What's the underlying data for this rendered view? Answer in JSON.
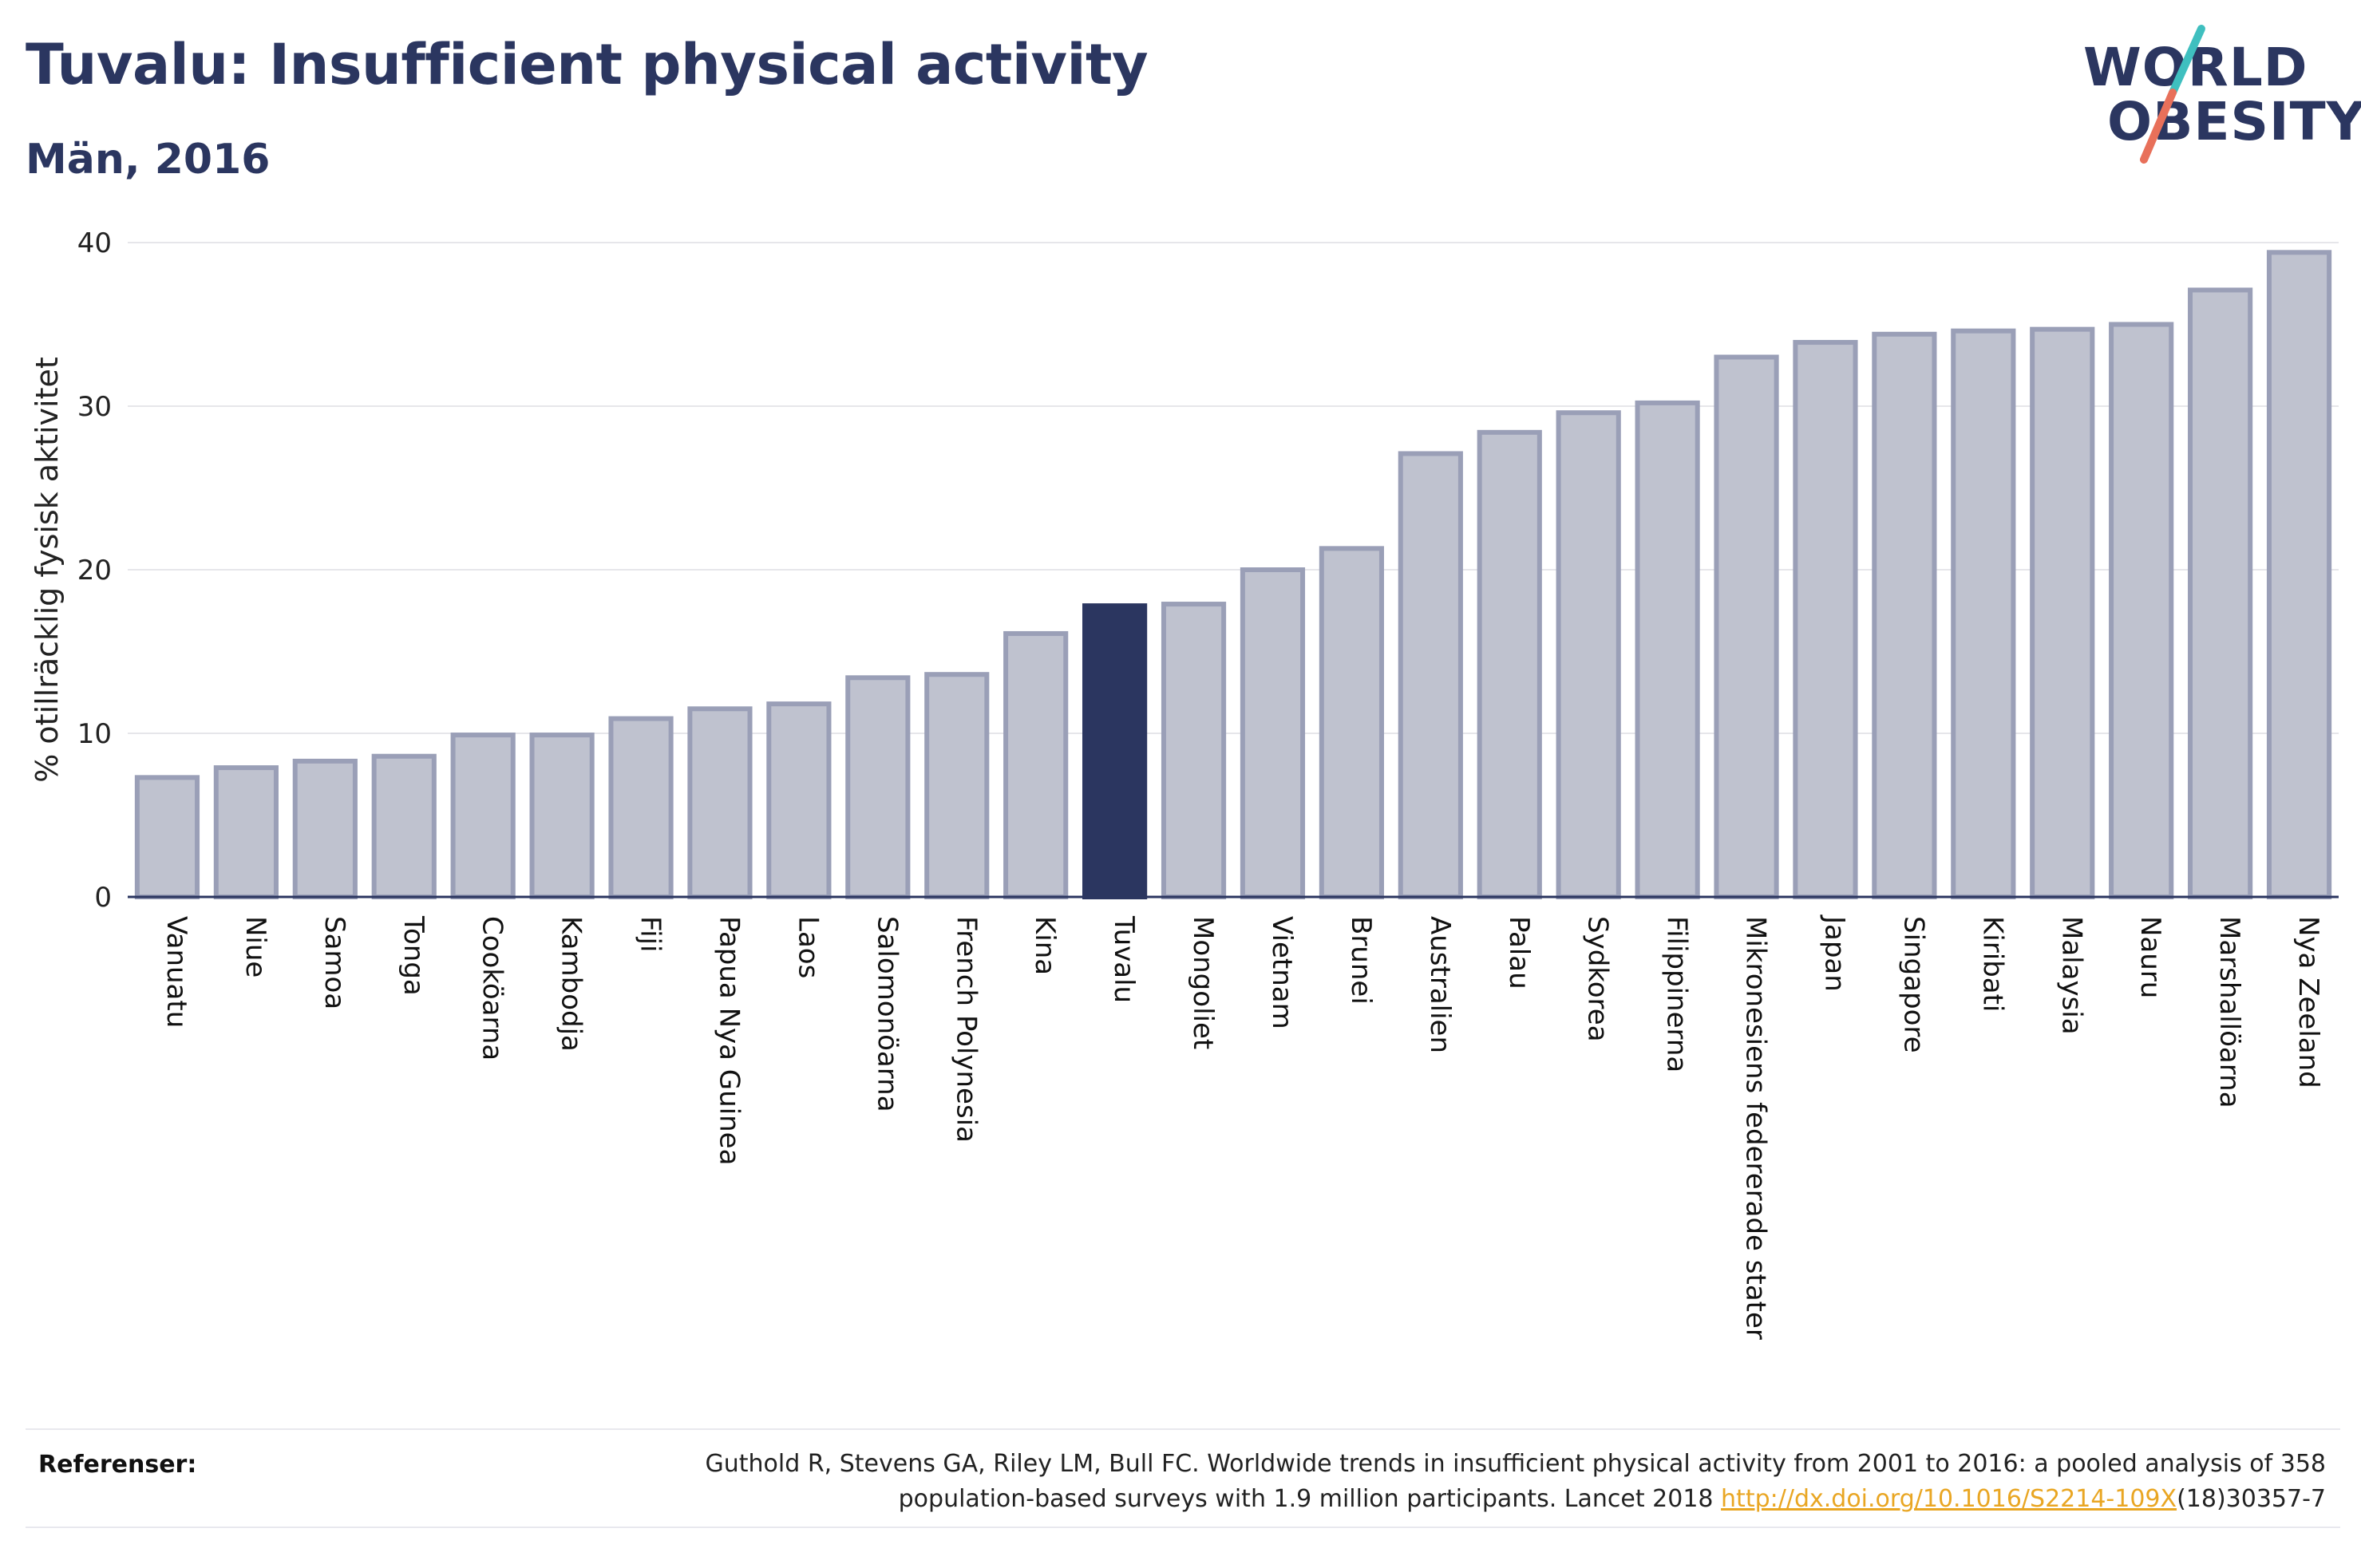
{
  "header": {
    "title": "Tuvalu: Insufficient physical activity",
    "subtitle": "Män, 2016"
  },
  "logo": {
    "line1": "WORLD",
    "line2": "OBESITY",
    "accent_colors": [
      "#3fbfbf",
      "#e8705a"
    ]
  },
  "colors": {
    "bar": "#bfc2cf",
    "bar_border": "#9a9fb7",
    "highlight": "#2b3660",
    "grid": "#e6e6ea",
    "axis": "#2b3660"
  },
  "chart_data": {
    "type": "bar",
    "ylabel": "% otillräcklig fysisk aktivitet",
    "xlabel": "",
    "ylim": [
      0,
      40
    ],
    "yticks": [
      0,
      10,
      20,
      30,
      40
    ],
    "grid": true,
    "highlight": "Tuvalu",
    "categories": [
      "Vanuatu",
      "Niue",
      "Samoa",
      "Tonga",
      "Cooköarna",
      "Kambodja",
      "Fiji",
      "Papua Nya Guinea",
      "Laos",
      "Salomonöarna",
      "French Polynesia",
      "Kina",
      "Tuvalu",
      "Mongoliet",
      "Vietnam",
      "Brunei",
      "Australien",
      "Palau",
      "Sydkorea",
      "Filippinerna",
      "Mikronesiens federerade stater",
      "Japan",
      "Singapore",
      "Kiribati",
      "Malaysia",
      "Nauru",
      "Marshallöarna",
      "Nya Zeeland"
    ],
    "values": [
      7.3,
      7.9,
      8.3,
      8.6,
      9.9,
      9.9,
      10.9,
      11.5,
      11.8,
      13.4,
      13.6,
      16.1,
      17.8,
      17.9,
      20.0,
      21.3,
      27.1,
      28.4,
      29.6,
      30.2,
      33.0,
      33.9,
      34.4,
      34.6,
      34.7,
      35.0,
      37.1,
      39.4
    ]
  },
  "references": {
    "label": "Referenser:",
    "text_line1": "Guthold R, Stevens GA, Riley LM, Bull FC. Worldwide trends in insufficient physical activity from 2001 to 2016: a pooled analysis of 358",
    "text_line2_prefix": "population-based surveys with 1.9 million participants. Lancet 2018 ",
    "link": "http://dx.doi.org/10.1016/S2214-109X",
    "text_line2_suffix": "(18)30357-7"
  }
}
